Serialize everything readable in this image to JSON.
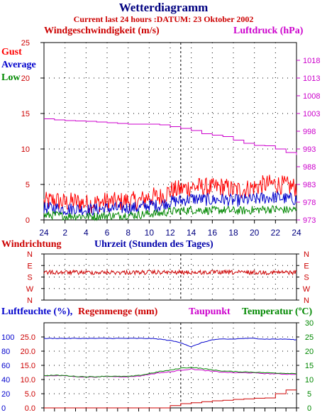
{
  "header": {
    "title": "Wetterdiagramm",
    "subtitle": "Current last 24 hours :DATUM: 23 Oktober 2002"
  },
  "colors": {
    "wind_label": "#cc0000",
    "gust": "#ff0000",
    "average": "#0000cc",
    "low": "#008800",
    "pressure": "#cc00cc",
    "direction": "#cc0000",
    "time_label": "#0000aa",
    "humidity": "#0000cc",
    "rain": "#cc0000",
    "dewpoint": "#cc00cc",
    "temperature": "#008800"
  },
  "panel1": {
    "left_title": "Windgeschwindigkeit (m/s)",
    "right_title": "Luftdruck (hPa)",
    "legend": {
      "gust": "Gust",
      "average": "Average",
      "low": "Low"
    },
    "x_ticks": [
      "24",
      "2",
      "4",
      "6",
      "8",
      "10",
      "12",
      "14",
      "16",
      "18",
      "20",
      "22",
      "24"
    ],
    "y_left_ticks": [
      "0",
      "5",
      "10",
      "15",
      "20",
      "25"
    ],
    "y_right_ticks": [
      "973",
      "978",
      "983",
      "988",
      "993",
      "998",
      "1003",
      "1008",
      "1013",
      "1018"
    ]
  },
  "panel2": {
    "left_title": "Windrichtung",
    "center_title": "Uhrzeit (Stunden des Tages)",
    "y_ticks": [
      "N",
      "E",
      "S",
      "W",
      "N"
    ]
  },
  "panel3": {
    "title_humidity": "Luftfeuchte (%),",
    "title_rain": "Regenmenge (mm)",
    "title_dewpoint": "Taupunkt",
    "title_temperature": "Temperatur (ºC)",
    "y_left_ticks": [
      "0",
      "20",
      "40",
      "60",
      "80",
      "100"
    ],
    "y_rain_ticks": [
      "0.0",
      "5.0",
      "10.0",
      "15.0",
      "20.0",
      "25.0"
    ],
    "y_right_ticks": [
      "0",
      "5",
      "10",
      "15",
      "20",
      "25",
      "30"
    ]
  },
  "chart_data": [
    {
      "type": "line",
      "title": "Windgeschwindigkeit (m/s) / Luftdruck (hPa)",
      "x": [
        0,
        1,
        2,
        3,
        4,
        5,
        6,
        7,
        8,
        9,
        10,
        11,
        12,
        13,
        14,
        15,
        16,
        17,
        18,
        19,
        20,
        21,
        22,
        23,
        24
      ],
      "xlim": [
        0,
        24
      ],
      "ylim": [
        0,
        25
      ],
      "y2lim": [
        973,
        1023
      ],
      "series": [
        {
          "name": "Gust",
          "axis": "left",
          "values": [
            2.5,
            2.8,
            2.4,
            2.6,
            2.3,
            2.4,
            2.6,
            2.5,
            2.7,
            2.6,
            3.3,
            3.2,
            4.1,
            4.3,
            4.7,
            4.6,
            4.5,
            4.7,
            4.2,
            4.3,
            4.6,
            5.0,
            5.1,
            4.8,
            4.6
          ]
        },
        {
          "name": "Average",
          "axis": "left",
          "values": [
            1.6,
            1.7,
            1.5,
            1.6,
            1.4,
            1.5,
            1.6,
            1.6,
            1.7,
            1.7,
            2.1,
            2.0,
            2.6,
            2.7,
            3.0,
            2.9,
            2.8,
            2.9,
            2.7,
            2.8,
            2.9,
            3.1,
            3.2,
            3.0,
            2.9
          ]
        },
        {
          "name": "Low",
          "axis": "left",
          "values": [
            0.6,
            0.7,
            0.5,
            0.6,
            0.5,
            0.5,
            0.6,
            0.6,
            0.7,
            0.7,
            0.9,
            0.9,
            1.2,
            1.3,
            1.4,
            1.4,
            1.3,
            1.4,
            1.3,
            1.3,
            1.4,
            1.5,
            1.5,
            1.4,
            1.4
          ]
        },
        {
          "name": "Luftdruck",
          "axis": "right",
          "values": [
            1001.5,
            1001.2,
            1001.0,
            1000.9,
            1000.8,
            1000.6,
            1000.4,
            1000.2,
            1000.0,
            1000.0,
            1000.0,
            999.8,
            999.3,
            998.8,
            998.2,
            997.3,
            996.9,
            996.5,
            995.5,
            994.6,
            994.0,
            993.9,
            993.0,
            992.0,
            991.3
          ]
        }
      ]
    },
    {
      "type": "line",
      "title": "Windrichtung",
      "x": [
        0,
        2,
        4,
        6,
        8,
        10,
        12,
        14,
        16,
        18,
        20,
        22,
        24
      ],
      "xlim": [
        0,
        24
      ],
      "y_categories": [
        "N",
        "E",
        "S",
        "W",
        "N"
      ],
      "series": [
        {
          "name": "Windrichtung",
          "values": [
            "S",
            "S",
            "S",
            "S",
            "S",
            "S",
            "S",
            "S",
            "S",
            "S",
            "S",
            "S",
            "S"
          ]
        }
      ]
    },
    {
      "type": "line",
      "title": "Luftfeuchte / Regenmenge / Taupunkt / Temperatur",
      "x": [
        0,
        1,
        2,
        3,
        4,
        5,
        6,
        7,
        8,
        9,
        10,
        11,
        12,
        13,
        14,
        15,
        16,
        17,
        18,
        19,
        20,
        21,
        22,
        23,
        24
      ],
      "xlim": [
        0,
        24
      ],
      "ylim": [
        0,
        120
      ],
      "y_rain_lim": [
        0,
        30
      ],
      "y2lim": [
        0,
        30
      ],
      "series": [
        {
          "name": "Luftfeuchte",
          "axis": "left",
          "values": [
            98,
            98,
            98,
            98,
            98,
            98,
            98,
            98,
            98,
            98,
            98,
            97,
            95,
            92,
            86,
            92,
            96,
            97,
            97,
            98,
            98,
            97,
            97,
            97,
            96
          ]
        },
        {
          "name": "Regenmenge",
          "axis": "rain",
          "values": [
            0,
            0,
            0,
            0,
            0,
            0,
            0,
            0,
            0,
            0,
            0,
            0,
            0.8,
            1.5,
            1.8,
            2.2,
            2.5,
            2.7,
            3.0,
            3.2,
            3.4,
            3.5,
            5.0,
            6.3,
            6.3
          ]
        },
        {
          "name": "Taupunkt",
          "axis": "right",
          "values": [
            11.3,
            11.4,
            11.3,
            11.0,
            10.9,
            10.9,
            11.1,
            11.0,
            11.0,
            11.2,
            11.8,
            12.4,
            12.7,
            13.3,
            13.7,
            13.3,
            12.9,
            12.6,
            12.4,
            12.4,
            12.3,
            12.1,
            12.0,
            11.9,
            11.9
          ]
        },
        {
          "name": "Temperatur",
          "axis": "right",
          "values": [
            11.4,
            11.5,
            11.4,
            11.1,
            11.0,
            11.0,
            11.2,
            11.1,
            11.1,
            11.4,
            12.1,
            12.8,
            13.3,
            14.0,
            14.3,
            13.9,
            13.4,
            13.0,
            12.8,
            12.7,
            12.6,
            12.4,
            12.3,
            12.2,
            12.1
          ]
        }
      ]
    }
  ]
}
